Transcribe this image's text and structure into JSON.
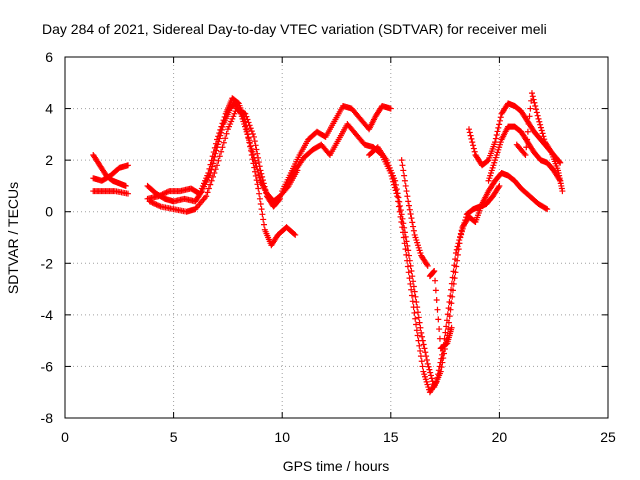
{
  "chart_data": {
    "type": "scatter",
    "title": "Day 284 of 2021, Sidereal Day-to-day VTEC variation (SDTVAR) for receiver meli",
    "xlabel": "GPS time / hours",
    "ylabel": "SDTVAR / TECUs",
    "xlim": [
      0,
      25
    ],
    "ylim": [
      -8,
      6
    ],
    "xticks": [
      0,
      5,
      10,
      15,
      20,
      25
    ],
    "yticks": [
      -8,
      -6,
      -4,
      -2,
      0,
      2,
      4,
      6
    ],
    "grid": true,
    "legend": "none",
    "marker": "+",
    "color": "#ff0000",
    "series": [
      {
        "x": [
          1.3,
          1.6,
          1.9,
          2.2,
          2.5,
          2.8
        ],
        "y": [
          2.2,
          1.8,
          1.4,
          1.2,
          1.1,
          1.0
        ]
      },
      {
        "x": [
          1.3,
          1.7,
          2.1,
          2.5,
          2.9
        ],
        "y": [
          1.3,
          1.2,
          1.4,
          1.7,
          1.8
        ]
      },
      {
        "x": [
          1.3,
          1.8,
          2.3,
          2.9
        ],
        "y": [
          0.8,
          0.8,
          0.8,
          0.7
        ]
      },
      {
        "x": [
          3.8,
          4.2,
          4.6,
          5.0,
          5.5,
          6.0,
          6.3,
          6.7,
          7.0,
          7.3,
          7.6,
          7.8,
          8.1,
          8.4,
          8.7,
          9.0,
          9.3,
          9.6,
          9.9,
          10.3,
          10.7
        ],
        "y": [
          1.0,
          0.7,
          0.5,
          0.4,
          0.5,
          0.4,
          0.8,
          1.5,
          2.5,
          3.4,
          4.0,
          4.2,
          3.8,
          3.0,
          2.1,
          1.2,
          0.7,
          0.4,
          0.6,
          1.0,
          1.6
        ]
      },
      {
        "x": [
          3.8,
          4.3,
          4.8,
          5.3,
          5.8,
          6.2,
          6.6,
          7.0,
          7.4,
          7.7,
          8.0,
          8.3,
          8.6,
          8.9,
          9.2,
          9.5,
          9.8,
          10.2,
          10.6
        ],
        "y": [
          0.5,
          0.6,
          0.8,
          0.8,
          0.9,
          0.7,
          1.5,
          2.8,
          3.8,
          4.4,
          4.2,
          3.5,
          2.2,
          0.9,
          -0.7,
          -1.3,
          -0.9,
          -0.6,
          -0.9
        ]
      },
      {
        "x": [
          3.9,
          4.4,
          5.0,
          5.6,
          6.0,
          6.5,
          7.0,
          7.5,
          7.9,
          8.3,
          8.7,
          9.0,
          9.3,
          9.6,
          9.9
        ],
        "y": [
          0.4,
          0.2,
          0.1,
          0.0,
          0.1,
          0.6,
          1.8,
          3.2,
          4.0,
          3.8,
          2.9,
          1.6,
          0.6,
          0.2,
          0.5
        ]
      },
      {
        "x": [
          10.0,
          10.4,
          10.8,
          11.2,
          11.6,
          12.0,
          12.4,
          12.8,
          13.2,
          13.6,
          14.0,
          14.3,
          14.6,
          15.0
        ],
        "y": [
          0.8,
          1.5,
          2.2,
          2.8,
          3.1,
          2.9,
          3.5,
          4.1,
          4.0,
          3.6,
          3.2,
          3.7,
          4.1,
          4.0
        ]
      },
      {
        "x": [
          10.2,
          10.6,
          11.0,
          11.4,
          11.8,
          12.2,
          12.6,
          13.0,
          13.4,
          13.8,
          14.2,
          14.6,
          15.0,
          15.3,
          15.6,
          15.9,
          16.2,
          16.5,
          16.8,
          17.1,
          17.4,
          17.7,
          18.0,
          18.3,
          18.6,
          18.9,
          19.2,
          19.5,
          19.8,
          20.1,
          20.4,
          20.7,
          21.0,
          21.4,
          21.8,
          22.2
        ],
        "y": [
          1.0,
          1.6,
          2.1,
          2.4,
          2.6,
          2.2,
          2.8,
          3.4,
          3.0,
          2.6,
          2.5,
          2.2,
          1.5,
          0.6,
          -1.0,
          -2.8,
          -4.6,
          -6.2,
          -7.0,
          -6.6,
          -5.4,
          -3.5,
          -1.6,
          -0.6,
          -0.2,
          -0.4,
          0.3,
          0.8,
          1.2,
          1.5,
          1.4,
          1.2,
          0.9,
          0.6,
          0.3,
          0.1
        ]
      },
      {
        "x": [
          14.0,
          14.4,
          14.8,
          15.2,
          15.5,
          15.8,
          16.1,
          16.4,
          16.7,
          17.0,
          17.3,
          17.6,
          17.9,
          18.2,
          18.5,
          18.8,
          19.1,
          19.4,
          19.7,
          20.0
        ],
        "y": [
          2.2,
          2.5,
          2.0,
          1.2,
          -0.1,
          -1.5,
          -3.1,
          -4.7,
          -5.9,
          -6.8,
          -6.2,
          -4.8,
          -2.8,
          -1.0,
          -0.1,
          0.1,
          0.2,
          0.3,
          0.6,
          1.0
        ]
      },
      {
        "x": [
          15.5,
          15.8,
          16.1,
          16.4,
          16.7
        ],
        "y": [
          2.0,
          0.4,
          -0.9,
          -1.7,
          -2.1
        ]
      },
      {
        "x": [
          16.8,
          17.0,
          17.3,
          17.6,
          17.8
        ],
        "y": [
          -2.5,
          -2.3,
          -5.3,
          -5.1,
          -4.5
        ]
      },
      {
        "x": [
          18.6,
          18.9,
          19.2,
          19.5,
          19.8,
          20.1,
          20.4,
          20.7,
          21.0,
          21.3,
          21.6,
          21.9,
          22.2,
          22.5,
          22.8
        ],
        "y": [
          3.2,
          2.2,
          1.8,
          2.0,
          2.7,
          3.8,
          4.2,
          4.1,
          3.9,
          3.5,
          3.1,
          2.8,
          2.5,
          2.2,
          1.9
        ]
      },
      {
        "x": [
          19.5,
          19.8,
          20.1,
          20.4,
          20.7,
          21.0,
          21.3,
          21.6,
          21.9,
          22.2,
          22.5,
          22.8
        ],
        "y": [
          1.2,
          2.0,
          2.8,
          3.3,
          3.3,
          3.1,
          2.7,
          2.3,
          2.0,
          1.9,
          1.6,
          1.2
        ]
      },
      {
        "x": [
          20.8,
          21.2,
          21.5,
          21.8,
          22.1,
          22.4,
          22.7,
          22.9
        ],
        "y": [
          2.6,
          2.2,
          4.6,
          3.6,
          2.7,
          2.3,
          1.6,
          0.8
        ]
      }
    ]
  }
}
